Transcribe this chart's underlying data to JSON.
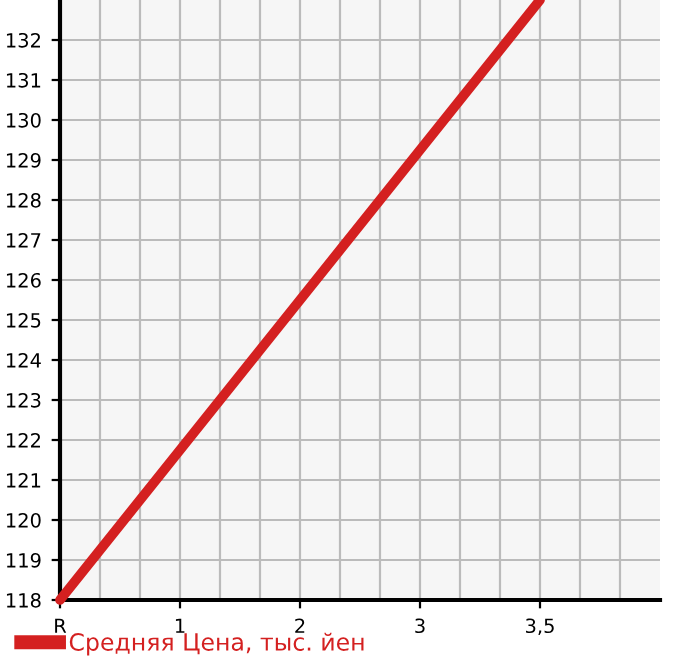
{
  "chart_data": {
    "type": "line",
    "categories": [
      "R",
      "1",
      "2",
      "3",
      "3,5"
    ],
    "series": [
      {
        "name": "Средняя Цена, тыс. йен",
        "color": "#d42020",
        "values": [
          118,
          121.75,
          125.5,
          129.25,
          133
        ]
      }
    ],
    "ylim": [
      118,
      133
    ],
    "yticks": [
      118,
      119,
      120,
      121,
      122,
      123,
      124,
      125,
      126,
      127,
      128,
      129,
      130,
      131,
      132
    ],
    "grid": true,
    "legend": "bottom left",
    "marker": "none",
    "line_style": "solid"
  }
}
